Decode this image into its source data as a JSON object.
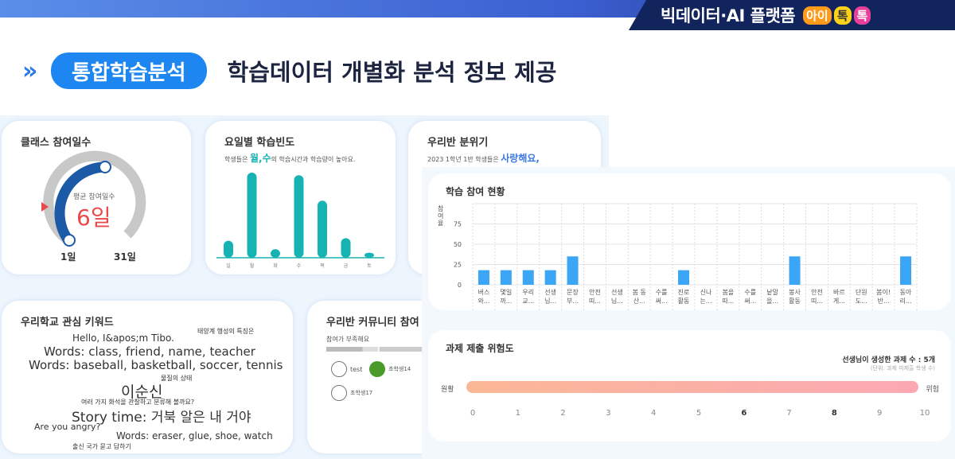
{
  "header": {
    "brand": "빅데이터·AI 플랫폼",
    "logo": "아이톡톡",
    "section_pill": "통합학습분석",
    "title": "학습데이터 개별화 분석 정보 제공",
    "chevron": "»"
  },
  "colors": {
    "accent": "#1d86f0",
    "navy": "#12245c",
    "teal": "#17b3b3",
    "bar": "#3aa6f5",
    "gauge": "#1c5aa8",
    "red": "#e84a4a"
  },
  "class_days": {
    "title": "클래스 참여일수",
    "avg_label": "평균 참여일수",
    "avg_value": "6일",
    "min_label": "1일",
    "max_label": "31일",
    "value": 6,
    "min": 1,
    "max": 31
  },
  "weekday": {
    "title": "요일별 학습빈도",
    "desc_prefix": "학생들은 ",
    "desc_highlight": "월,수",
    "desc_suffix": "의 학습시간과 학습량이 높아요.",
    "chart_data": {
      "type": "bar",
      "categories": [
        "일",
        "월",
        "화",
        "수",
        "목",
        "금",
        "토"
      ],
      "values": [
        20,
        100,
        10,
        97,
        67,
        23,
        6
      ]
    }
  },
  "mood": {
    "title": "우리반 분위기",
    "desc": "2023 1학년 1반 학생들은 ",
    "highlight": "사랑해요,"
  },
  "keywords": {
    "title": "우리학교 관심 키워드",
    "items": [
      {
        "text": "태양계 행성의 특징은",
        "color": "#444"
      },
      {
        "text": "Hello, I&apos;m Tibo.",
        "color": "#4a86d0"
      },
      {
        "text": "Words: class, friend, name, teacher",
        "color": "#5cb85c"
      },
      {
        "text": "Words: baseball, basketball, soccer, tennis",
        "color": "#f0b400"
      },
      {
        "text": "물질의 상태",
        "color": "#444"
      },
      {
        "text": "이순신",
        "color": "#e84040"
      },
      {
        "text": "여러 가지 화석을 관찰하고 분류해 볼까요?",
        "color": "#f0b400"
      },
      {
        "text": "Story time: 거북 알은 내 거야",
        "color": "#3a78c8"
      },
      {
        "text": "Are you angry?",
        "color": "#e84040"
      },
      {
        "text": "Words: eraser, glue, shoe, watch",
        "color": "#a860d8"
      },
      {
        "text": "출신 국가 묻고 답하기",
        "color": "#5cb85c"
      }
    ]
  },
  "community": {
    "title": "우리반 커뮤니티 참여",
    "status": "참여가 부족해요",
    "members": [
      "test",
      "초학생14",
      "초학생17"
    ]
  },
  "participation": {
    "title": "학습 참여 현황",
    "chart_data": {
      "type": "bar",
      "ylabel": "참여율",
      "ylim": [
        0,
        100
      ],
      "yticks": [
        0,
        25,
        50,
        75
      ],
      "grid": true,
      "categories": [
        [
          "버스",
          "와..."
        ],
        [
          "몇일",
          "까..."
        ],
        [
          "우리",
          "교..."
        ],
        [
          "선생",
          "님..."
        ],
        [
          "문장",
          "부..."
        ],
        [
          "안전",
          "띠..."
        ],
        [
          "선생",
          "님..."
        ],
        [
          "봄 동",
          "산..."
        ],
        [
          "수를",
          "써..."
        ],
        [
          "진로",
          "활동"
        ],
        [
          "신나",
          "는..."
        ],
        [
          "봄을",
          "따..."
        ],
        [
          "수를",
          "써..."
        ],
        [
          "낱말",
          "을..."
        ],
        [
          "봉사",
          "활동"
        ],
        [
          "안전",
          "띠..."
        ],
        [
          "바르",
          "게..."
        ],
        [
          "단원",
          "도..."
        ],
        [
          "봄이!",
          "반..."
        ],
        [
          "동아",
          "리..."
        ]
      ],
      "values": [
        18,
        18,
        18,
        18,
        35,
        0,
        0,
        0,
        0,
        18,
        0,
        0,
        0,
        0,
        35,
        0,
        0,
        0,
        0,
        35
      ]
    }
  },
  "risk": {
    "title": "과제 제출 위험도",
    "count_label": "선생님이 생성한 과제 수 : ",
    "count_value": "5개",
    "unit": "(단위: 과제 미제출 학생 수)",
    "left": "원활",
    "right": "위험",
    "ticks": [
      "0",
      "1",
      "2",
      "3",
      "4",
      "5",
      "6",
      "7",
      "8",
      "9",
      "10"
    ],
    "bold_ticks": [
      "6",
      "8"
    ]
  }
}
